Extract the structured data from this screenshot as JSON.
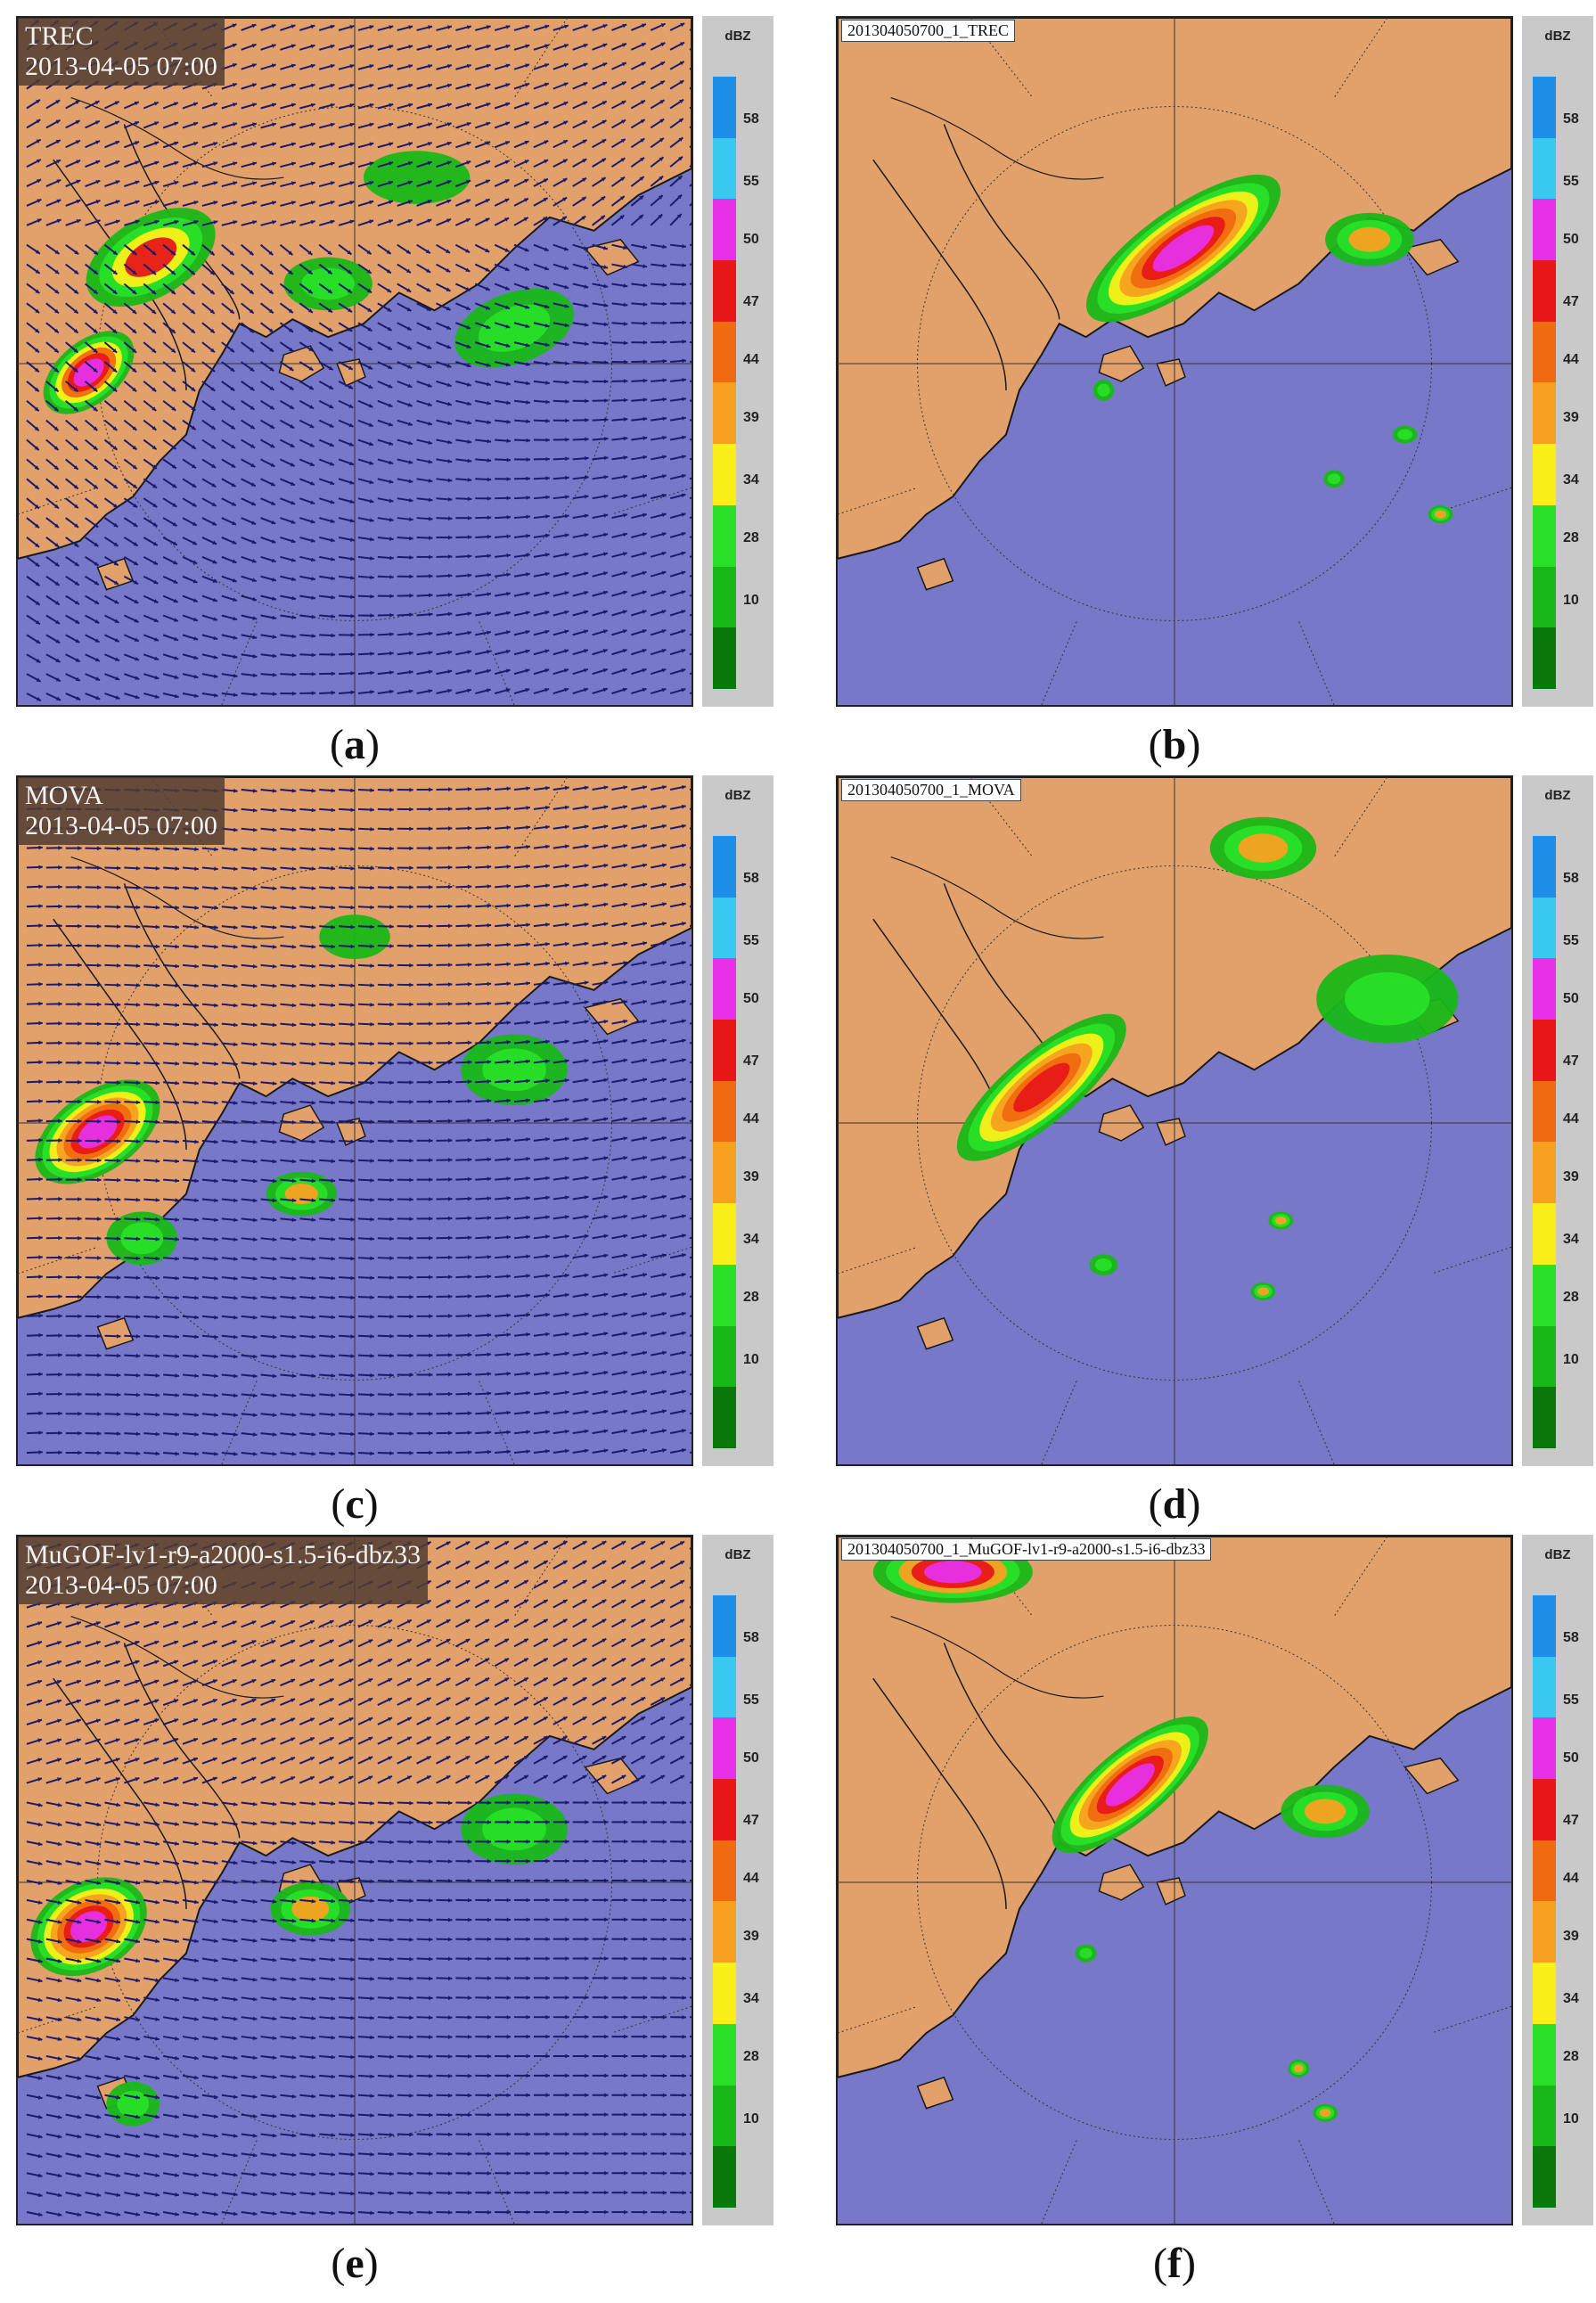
{
  "legend": {
    "unit": "dBZ",
    "colors": [
      "#1e8fe8",
      "#38c8f0",
      "#e830e8",
      "#e81818",
      "#f06a10",
      "#f8a020",
      "#f8f018",
      "#28e028",
      "#18b818",
      "#0a780a"
    ],
    "ticks": [
      "58",
      "55",
      "50",
      "47",
      "44",
      "39",
      "34",
      "28",
      "10"
    ]
  },
  "panels": [
    {
      "id": "a",
      "kind": "vector",
      "title": "TREC",
      "time": "2013-04-05 07:00",
      "caption": "a"
    },
    {
      "id": "b",
      "kind": "radar",
      "title": "201304050700_1_TREC",
      "caption": "b"
    },
    {
      "id": "c",
      "kind": "vector",
      "title": "MOVA",
      "time": "2013-04-05 07:00",
      "caption": "c"
    },
    {
      "id": "d",
      "kind": "radar",
      "title": "201304050700_1_MOVA",
      "caption": "d"
    },
    {
      "id": "e",
      "kind": "vector",
      "title": "MuGOF-lv1-r9-a2000-s1.5-i6-dbz33",
      "time": "2013-04-05 07:00",
      "caption": "e"
    },
    {
      "id": "f",
      "kind": "radar",
      "title": "201304050700_1_MuGOF-lv1-r9-a2000-s1.5-i6-dbz33",
      "caption": "f"
    }
  ],
  "colors": {
    "land": "#e2a06a",
    "sea": "#7878c8",
    "vector": "#1a1a6e",
    "coast": "#1a1a1a"
  }
}
